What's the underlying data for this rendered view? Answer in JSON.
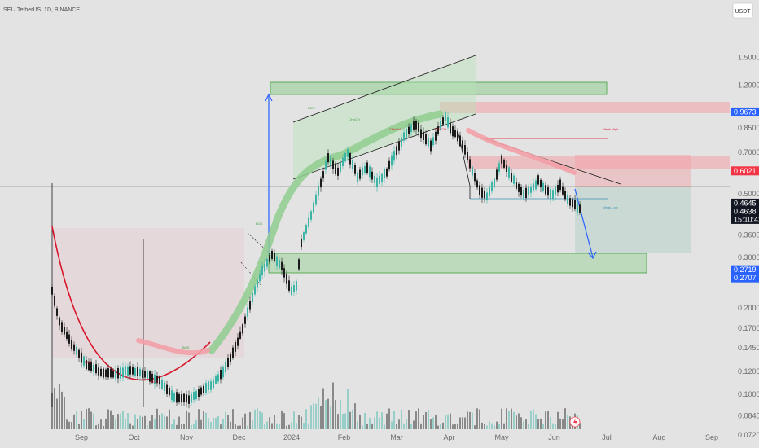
{
  "header": {
    "symbol_line": "SEI / TetherUS, 1D, BINANCE"
  },
  "currency_button": "USDT",
  "colors": {
    "up": "#3cb4a6",
    "down": "#1b1b1b",
    "bull_zone": "#8fce8f",
    "bear_zone": "#f2a0a6",
    "blue": "#2962ff",
    "red": "#f23645",
    "cup": "#d8142a"
  },
  "chart_data": {
    "type": "candlestick",
    "title": "SEI / TetherUS, 1D, BINANCE",
    "y_scale": "log",
    "ylim": [
      0.067,
      2.2
    ],
    "y_ticks": [
      {
        "label": "1.5000",
        "value": 1.5
      },
      {
        "label": "1.2000",
        "value": 1.2
      },
      {
        "label": "0.8500",
        "value": 0.85
      },
      {
        "label": "0.7000",
        "value": 0.7
      },
      {
        "label": "0.5000",
        "value": 0.5
      },
      {
        "label": "0.3600",
        "value": 0.36
      },
      {
        "label": "0.3000",
        "value": 0.3
      },
      {
        "label": "0.2000",
        "value": 0.2
      },
      {
        "label": "0.1700",
        "value": 0.17
      },
      {
        "label": "0.1450",
        "value": 0.145
      },
      {
        "label": "0.1200",
        "value": 0.12
      },
      {
        "label": "0.1000",
        "value": 0.1
      },
      {
        "label": "0.0840",
        "value": 0.084
      },
      {
        "label": "0.0720",
        "value": 0.072
      }
    ],
    "x_ticks": [
      "Sep",
      "Oct",
      "Nov",
      "Dec",
      "2024",
      "Feb",
      "Mar",
      "Apr",
      "May",
      "Jun",
      "Jul",
      "Aug",
      "Sep"
    ],
    "price_tags": [
      {
        "label": "0.9673",
        "value": 0.9673,
        "color": "#2962ff"
      },
      {
        "label": "0.6021",
        "value": 0.6021,
        "color": "#f23645"
      },
      {
        "label": "0.4645",
        "value": 0.4645,
        "color": "#131722"
      },
      {
        "label": "0.4638",
        "value": 0.4638,
        "color": "#131722"
      },
      {
        "label": "15:10:42",
        "value": 0.4465,
        "color": "#131722"
      },
      {
        "label": "0.2719",
        "value": 0.2719,
        "color": "#2962ff"
      },
      {
        "label": "0.2707",
        "value": 0.2707,
        "color": "#2962ff"
      }
    ],
    "path_points": [
      [
        0,
        0.23
      ],
      [
        3,
        0.18
      ],
      [
        8,
        0.15
      ],
      [
        14,
        0.128
      ],
      [
        20,
        0.12
      ],
      [
        26,
        0.118
      ],
      [
        32,
        0.122
      ],
      [
        38,
        0.118
      ],
      [
        44,
        0.112
      ],
      [
        50,
        0.098
      ],
      [
        56,
        0.097
      ],
      [
        62,
        0.104
      ],
      [
        66,
        0.11
      ],
      [
        70,
        0.12
      ],
      [
        74,
        0.14
      ],
      [
        78,
        0.17
      ],
      [
        82,
        0.22
      ],
      [
        86,
        0.27
      ],
      [
        90,
        0.31
      ],
      [
        94,
        0.28
      ],
      [
        98,
        0.23
      ],
      [
        100,
        0.24
      ],
      [
        102,
        0.34
      ],
      [
        106,
        0.42
      ],
      [
        110,
        0.55
      ],
      [
        113,
        0.67
      ],
      [
        117,
        0.6
      ],
      [
        121,
        0.7
      ],
      [
        125,
        0.58
      ],
      [
        129,
        0.62
      ],
      [
        133,
        0.55
      ],
      [
        137,
        0.6
      ],
      [
        141,
        0.72
      ],
      [
        145,
        0.82
      ],
      [
        149,
        0.88
      ],
      [
        152,
        0.8
      ],
      [
        155,
        0.74
      ],
      [
        158,
        0.84
      ],
      [
        161,
        0.94
      ],
      [
        163,
        0.85
      ],
      [
        166,
        0.8
      ],
      [
        169,
        0.72
      ],
      [
        172,
        0.6
      ],
      [
        175,
        0.52
      ],
      [
        178,
        0.49
      ],
      [
        181,
        0.55
      ],
      [
        184,
        0.66
      ],
      [
        187,
        0.6
      ],
      [
        190,
        0.54
      ],
      [
        193,
        0.5
      ],
      [
        196,
        0.52
      ],
      [
        199,
        0.56
      ],
      [
        202,
        0.52
      ],
      [
        205,
        0.5
      ],
      [
        208,
        0.54
      ],
      [
        211,
        0.48
      ],
      [
        214,
        0.46
      ],
      [
        216,
        0.445
      ]
    ],
    "range_start_label": "Sep",
    "annotations": {
      "choch": "CHoCH",
      "bos": "BOS",
      "weak_high": "Weak High",
      "weak_low": "Weak Low"
    }
  }
}
